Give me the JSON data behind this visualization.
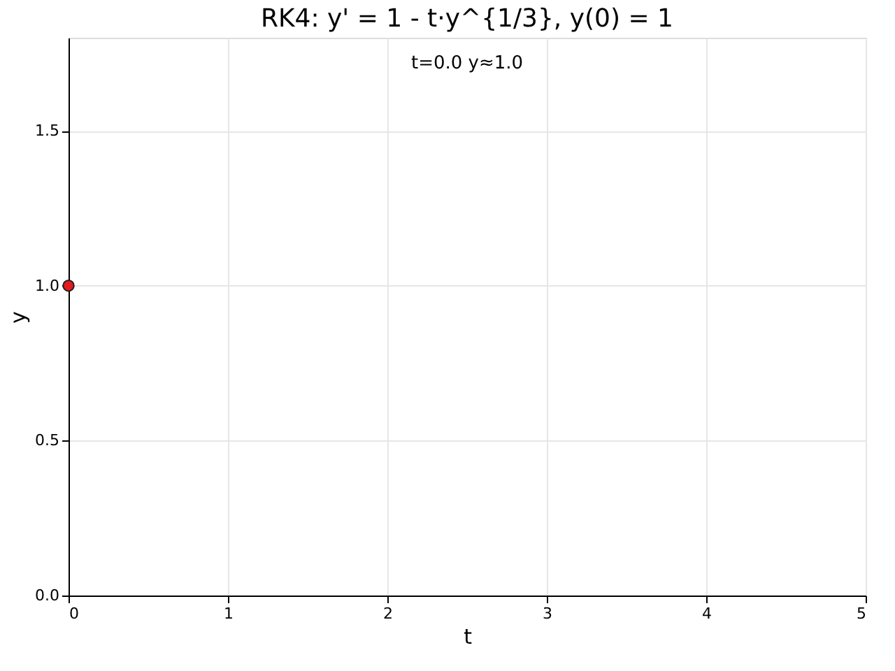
{
  "chart_data": {
    "type": "scatter",
    "title": "RK4: y' = 1 - t·y^{1/3},  y(0) = 1",
    "xlabel": "t",
    "ylabel": "y",
    "x": [
      0.0
    ],
    "series": [
      {
        "color": "#e41a1c",
        "values": [
          1.0
        ]
      }
    ],
    "annotations": [
      "t=0.0  y≈1.0"
    ],
    "xlim": [
      0,
      5
    ],
    "ylim": [
      0,
      1.8
    ],
    "xticks": [
      0,
      1,
      2,
      3,
      4,
      5
    ],
    "yticks": [
      {
        "value": 0,
        "label": "0.0"
      },
      {
        "value": 0.5,
        "label": "0.5"
      },
      {
        "value": 1,
        "label": "1.0"
      },
      {
        "value": 1.5,
        "label": "1.5"
      }
    ],
    "grid": true,
    "marker": "circle",
    "legend": false
  }
}
